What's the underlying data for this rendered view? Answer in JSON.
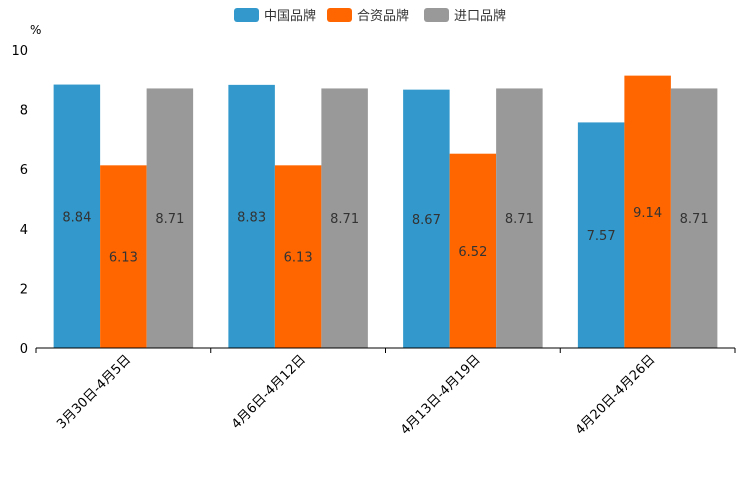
{
  "chart_data": {
    "type": "bar",
    "title": "",
    "unit_label": "%",
    "xlabel": "",
    "ylabel": "%",
    "ylim": [
      0,
      10
    ],
    "yticks": [
      0,
      2,
      4,
      6,
      8,
      10
    ],
    "categories": [
      "3月30日-4月5日",
      "4月6日-4月12日",
      "4月13日-4月19日",
      "4月20日-4月26日"
    ],
    "series": [
      {
        "name": "中国品牌",
        "color": "#3399cc",
        "values": [
          8.84,
          8.83,
          8.67,
          7.57
        ]
      },
      {
        "name": "合资品牌",
        "color": "#ff6600",
        "values": [
          6.13,
          6.13,
          6.52,
          9.14
        ]
      },
      {
        "name": "进口品牌",
        "color": "#999999",
        "values": [
          8.71,
          8.71,
          8.71,
          8.71
        ]
      }
    ],
    "legend_position": "top-center",
    "grid": false
  }
}
